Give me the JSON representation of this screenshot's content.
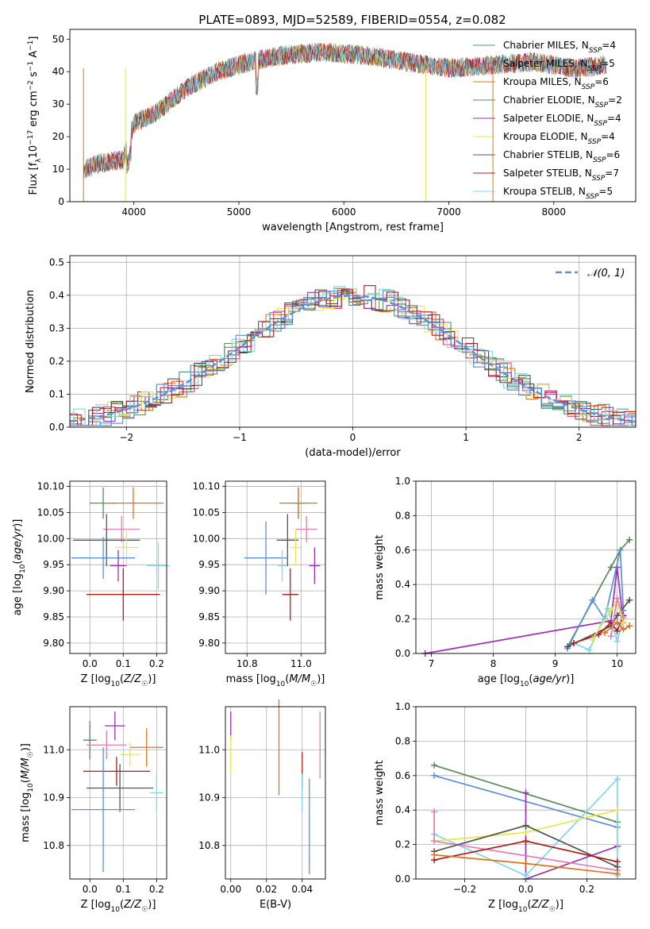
{
  "title": "PLATE=0893, MJD=52589, FIBERID=0554, z=0.082",
  "colors": {
    "Chabrier MILES": "#4d8f8f",
    "Salpeter MILES": "#e0447c",
    "Kroupa MILES": "#e07316",
    "Chabrier ELODIE": "#5a8a5a",
    "Salpeter ELODIE": "#9b30b0",
    "Kroupa ELODIE": "#e6e650",
    "Chabrier STELIB": "#555555",
    "Salpeter STELIB": "#b01c1c",
    "Kroupa STELIB": "#7fd8e8",
    "norm": "#5b8fd6",
    "blue": "#5b8fd6",
    "green": "#5a8a5a",
    "pink": "#e07cb8",
    "orange": "#e07316"
  },
  "chart_data": [
    {
      "id": "spectrum",
      "type": "line",
      "title": "PLATE=0893, MJD=52589, FIBERID=0554, z=0.082",
      "xlabel": "wavelength [Angstrom, rest frame]",
      "ylabel": "Flux [f_λ 10^-17 erg cm^-2 s^-1 A^-1]",
      "xlim": [
        3390,
        8780
      ],
      "ylim": [
        0,
        53
      ],
      "xticks": [
        4000,
        5000,
        6000,
        7000,
        8000
      ],
      "yticks": [
        0,
        10,
        20,
        30,
        40,
        50
      ],
      "legend": "right",
      "series": [
        {
          "name": "Chabrier MILES",
          "nssp": "4"
        },
        {
          "name": "Salpeter MILES",
          "nssp": "5"
        },
        {
          "name": "Kroupa MILES",
          "nssp": "6"
        },
        {
          "name": "Chabrier ELODIE",
          "nssp": "2"
        },
        {
          "name": "Salpeter ELODIE",
          "nssp": "4"
        },
        {
          "name": "Kroupa ELODIE",
          "nssp": "4"
        },
        {
          "name": "Chabrier STELIB",
          "nssp": "6"
        },
        {
          "name": "Salpeter STELIB",
          "nssp": "7"
        },
        {
          "name": "Kroupa STELIB",
          "nssp": "5"
        }
      ],
      "continuum": {
        "x": [
          3520,
          3700,
          3900,
          4000,
          4200,
          4500,
          4800,
          5100,
          5400,
          5800,
          6200,
          6600,
          7000,
          7400,
          7800,
          8200,
          8500
        ],
        "y": [
          10,
          12,
          13,
          24,
          27,
          35,
          40,
          43,
          45,
          46,
          45,
          43,
          41,
          42,
          43,
          41,
          42
        ]
      }
    },
    {
      "id": "residuals",
      "type": "bar",
      "xlabel": "(data-model)/error",
      "ylabel": "Normed distribution",
      "xlim": [
        -2.5,
        2.5
      ],
      "ylim": [
        0,
        0.52
      ],
      "xticks": [
        -2,
        -1,
        0,
        1,
        2
      ],
      "yticks": [
        0.0,
        0.1,
        0.2,
        0.3,
        0.4,
        0.5
      ],
      "legend": "top-right",
      "reference": {
        "name": "𝒩(0, 1)",
        "mean": 0,
        "sigma": 1
      },
      "bin_width": 0.1
    },
    {
      "id": "age-vs-Z",
      "type": "scatter",
      "xlabel": "Z [log10(Z/Z☉)]",
      "ylabel": "age  [log10(age/yr)]",
      "xlim": [
        -0.06,
        0.23
      ],
      "ylim": [
        9.78,
        10.11
      ],
      "xticks": [
        0.0,
        0.1,
        0.2
      ],
      "yticks": [
        9.8,
        9.85,
        9.9,
        9.95,
        10.0,
        10.05,
        10.1
      ],
      "points": [
        {
          "c": "green",
          "x": 0.04,
          "y": 10.068,
          "ex": 0.04,
          "ey": 0.03
        },
        {
          "c": "orange",
          "x": 0.13,
          "y": 10.068,
          "ex": 0.09,
          "ey": 0.03
        },
        {
          "c": "pink",
          "x": 0.095,
          "y": 10.018,
          "ex": 0.055,
          "ey": 0.025
        },
        {
          "c": "Chabrier STELIB",
          "x": 0.05,
          "y": 9.997,
          "ex": 0.1,
          "ey": 0.05
        },
        {
          "c": "Kroupa ELODIE",
          "x": 0.11,
          "y": 9.983,
          "ex": 0.035,
          "ey": 0.035
        },
        {
          "c": "blue",
          "x": 0.04,
          "y": 9.963,
          "ex": 0.095,
          "ey": 0.04
        },
        {
          "c": "Salpeter ELODIE",
          "x": 0.085,
          "y": 9.948,
          "ex": 0.025,
          "ey": 0.03
        },
        {
          "c": "Kroupa STELIB",
          "x": 0.205,
          "y": 9.948,
          "ex": 0.035,
          "ey": 0.045
        },
        {
          "c": "Salpeter STELIB",
          "x": 0.1,
          "y": 9.893,
          "ex": 0.11,
          "ey": 0.05
        }
      ]
    },
    {
      "id": "age-vs-mass",
      "type": "scatter",
      "xlabel": "mass [log10(M/M☉)]",
      "ylabel": "",
      "xlim": [
        10.72,
        11.09
      ],
      "ylim": [
        9.78,
        10.11
      ],
      "xticks": [
        10.8,
        11.0
      ],
      "yticks": [
        9.8,
        9.85,
        9.9,
        9.95,
        10.0,
        10.05,
        10.1
      ],
      "points": [
        {
          "c": "green",
          "x": 10.99,
          "y": 10.068,
          "ex": 0.03,
          "ey": 0.03
        },
        {
          "c": "orange",
          "x": 10.99,
          "y": 10.068,
          "ex": 0.07,
          "ey": 0.03
        },
        {
          "c": "pink",
          "x": 11.02,
          "y": 10.018,
          "ex": 0.04,
          "ey": 0.025
        },
        {
          "c": "Chabrier STELIB",
          "x": 10.95,
          "y": 9.997,
          "ex": 0.04,
          "ey": 0.05
        },
        {
          "c": "Kroupa ELODIE",
          "x": 10.98,
          "y": 9.983,
          "ex": 0.02,
          "ey": 0.035
        },
        {
          "c": "blue",
          "x": 10.87,
          "y": 9.963,
          "ex": 0.08,
          "ey": 0.07
        },
        {
          "c": "Salpeter ELODIE",
          "x": 11.05,
          "y": 9.948,
          "ex": 0.02,
          "ey": 0.035
        },
        {
          "c": "Kroupa STELIB",
          "x": 10.93,
          "y": 9.948,
          "ex": 0.015,
          "ey": 0.03
        },
        {
          "c": "Salpeter STELIB",
          "x": 10.96,
          "y": 9.893,
          "ex": 0.03,
          "ey": 0.05
        }
      ]
    },
    {
      "id": "weight-vs-age",
      "type": "line",
      "xlabel": "age  [log10(age/yr)]",
      "ylabel": "mass weight",
      "xlim": [
        6.75,
        10.3
      ],
      "ylim": [
        0,
        1.0
      ],
      "xticks": [
        7,
        8,
        9,
        10
      ],
      "yticks": [
        0.0,
        0.2,
        0.4,
        0.6,
        0.8,
        1.0
      ],
      "series": [
        {
          "c": "Salpeter ELODIE",
          "x": [
            6.9,
            9.9,
            10.0,
            10.1
          ],
          "y": [
            0.0,
            0.19,
            0.5,
            0.18
          ]
        },
        {
          "c": "green",
          "x": [
            9.2,
            9.9,
            10.05,
            10.2
          ],
          "y": [
            0.04,
            0.5,
            0.6,
            0.66
          ]
        },
        {
          "c": "blue",
          "x": [
            9.2,
            9.6,
            9.8,
            10.05,
            10.1
          ],
          "y": [
            0.03,
            0.31,
            0.2,
            0.6,
            0.25
          ]
        },
        {
          "c": "Chabrier STELIB",
          "x": [
            9.2,
            9.9,
            10.0,
            10.2
          ],
          "y": [
            0.04,
            0.16,
            0.22,
            0.31
          ]
        },
        {
          "c": "Kroupa STELIB",
          "x": [
            9.3,
            9.55,
            9.85,
            10.0,
            10.1
          ],
          "y": [
            0.06,
            0.02,
            0.26,
            0.07,
            0.2
          ]
        },
        {
          "c": "Salpeter STELIB",
          "x": [
            9.3,
            9.7,
            9.9,
            10.0,
            10.1
          ],
          "y": [
            0.06,
            0.11,
            0.18,
            0.13,
            0.22
          ]
        },
        {
          "c": "Kroupa ELODIE",
          "x": [
            9.6,
            9.9,
            10.0,
            10.1
          ],
          "y": [
            0.08,
            0.25,
            0.3,
            0.18
          ]
        },
        {
          "c": "orange",
          "x": [
            9.8,
            10.0,
            10.1,
            10.2
          ],
          "y": [
            0.12,
            0.18,
            0.14,
            0.16
          ]
        },
        {
          "c": "pink",
          "x": [
            9.9,
            10.0,
            10.1
          ],
          "y": [
            0.1,
            0.32,
            0.21
          ]
        }
      ]
    },
    {
      "id": "mass-vs-Z",
      "type": "scatter",
      "xlabel": "Z [log10(Z/Z☉)]",
      "ylabel": "mass [log10(M/M☉)]",
      "xlim": [
        -0.06,
        0.23
      ],
      "ylim": [
        10.73,
        11.09
      ],
      "xticks": [
        0.0,
        0.1,
        0.2
      ],
      "yticks": [
        10.8,
        10.9,
        11.0
      ],
      "points": [
        {
          "c": "Salpeter ELODIE",
          "x": 0.075,
          "y": 11.05,
          "ex": 0.03,
          "ey": 0.03
        },
        {
          "c": "green",
          "x": 0.0,
          "y": 11.02,
          "ex": 0.02,
          "ey": 0.04
        },
        {
          "c": "orange",
          "x": 0.17,
          "y": 11.005,
          "ex": 0.05,
          "ey": 0.04
        },
        {
          "c": "pink",
          "x": 0.05,
          "y": 11.01,
          "ex": 0.06,
          "ey": 0.03
        },
        {
          "c": "Kroupa ELODIE",
          "x": 0.12,
          "y": 10.99,
          "ex": 0.03,
          "ey": 0.025
        },
        {
          "c": "Salpeter STELIB",
          "x": 0.08,
          "y": 10.955,
          "ex": 0.1,
          "ey": 0.03
        },
        {
          "c": "Chabrier STELIB",
          "x": 0.09,
          "y": 10.92,
          "ex": 0.1,
          "ey": 0.05
        },
        {
          "c": "Kroupa STELIB",
          "x": 0.2,
          "y": 10.91,
          "ex": 0.02,
          "ey": 0.04
        },
        {
          "c": "blue",
          "x": 0.04,
          "y": 10.875,
          "ex": 0.095,
          "ey": 0.13
        }
      ]
    },
    {
      "id": "mass-vs-ebv",
      "type": "scatter",
      "xlabel": "E(B-V)",
      "ylabel": "",
      "xlim": [
        -0.003,
        0.053
      ],
      "ylim": [
        10.73,
        11.09
      ],
      "xticks": [
        0.0,
        0.02,
        0.04
      ],
      "yticks": [
        10.8,
        10.9,
        11.0
      ],
      "points": [
        {
          "c": "Salpeter ELODIE",
          "x": 0.0,
          "y": 11.05,
          "ey": 0.03
        },
        {
          "c": "Kroupa ELODIE",
          "x": 0.0,
          "y": 10.99,
          "ey": 0.04
        },
        {
          "c": "orange",
          "x": 0.027,
          "y": 11.005,
          "ey": 0.1
        },
        {
          "c": "Salpeter STELIB",
          "x": 0.04,
          "y": 10.955,
          "ey": 0.04
        },
        {
          "c": "Kroupa STELIB",
          "x": 0.04,
          "y": 10.91,
          "ey": 0.04
        },
        {
          "c": "blue",
          "x": 0.044,
          "y": 10.84,
          "ey": 0.1
        },
        {
          "c": "pink",
          "x": 0.05,
          "y": 11.01,
          "ey": 0.07
        }
      ]
    },
    {
      "id": "weight-vs-Z",
      "type": "line",
      "xlabel": "Z [log10(Z/Z☉)]",
      "ylabel": "mass weight",
      "xlim": [
        -0.36,
        0.36
      ],
      "ylim": [
        0,
        1.0
      ],
      "xticks": [
        -0.2,
        0.0,
        0.2
      ],
      "yticks": [
        0.0,
        0.2,
        0.4,
        0.6,
        0.8,
        1.0
      ],
      "series": [
        {
          "c": "green",
          "x": [
            -0.3,
            0.3
          ],
          "y": [
            0.66,
            0.33
          ]
        },
        {
          "c": "blue",
          "x": [
            -0.3,
            0.3
          ],
          "y": [
            0.6,
            0.3
          ]
        },
        {
          "c": "Salpeter ELODIE",
          "x": [
            0.0,
            0.0,
            0.3
          ],
          "y": [
            0.5,
            0.0,
            0.19
          ]
        },
        {
          "c": "Kroupa STELIB",
          "x": [
            -0.3,
            0.0,
            0.3,
            0.3
          ],
          "y": [
            0.26,
            0.02,
            0.58,
            0.02
          ]
        },
        {
          "c": "Kroupa ELODIE",
          "x": [
            -0.3,
            0.0,
            0.3
          ],
          "y": [
            0.22,
            0.27,
            0.4
          ]
        },
        {
          "c": "pink",
          "x": [
            -0.3,
            -0.3,
            0.3
          ],
          "y": [
            0.39,
            0.22,
            0.05
          ]
        },
        {
          "c": "Chabrier STELIB",
          "x": [
            -0.3,
            0.0,
            0.3
          ],
          "y": [
            0.16,
            0.31,
            0.07
          ]
        },
        {
          "c": "Salpeter STELIB",
          "x": [
            -0.3,
            0.0,
            0.3
          ],
          "y": [
            0.11,
            0.22,
            0.1
          ]
        },
        {
          "c": "orange",
          "x": [
            -0.3,
            0.0,
            0.3
          ],
          "y": [
            0.14,
            0.09,
            0.03
          ]
        }
      ]
    }
  ]
}
